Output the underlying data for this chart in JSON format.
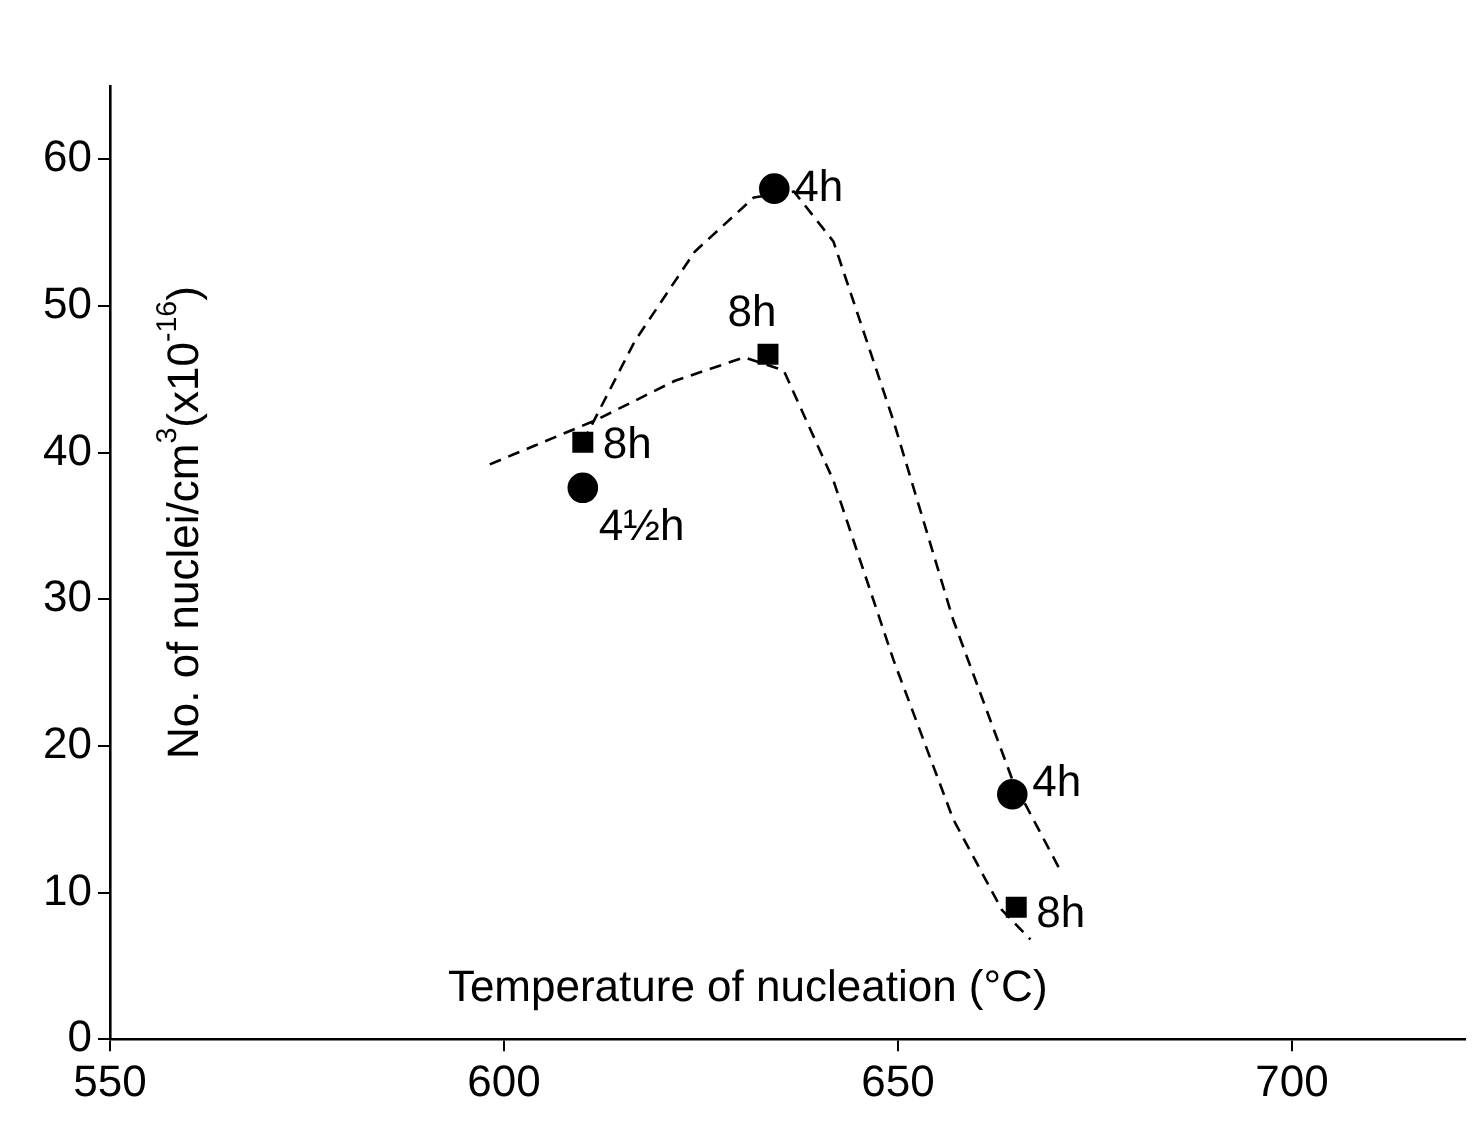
{
  "chart_data": {
    "type": "scatter",
    "xlabel": "Temperature of nucleation (°C)",
    "ylabel": "No. of nuclei/cm$^{3}$(x10$^{-16}$)",
    "xlim": [
      550,
      722
    ],
    "xticks": [
      550,
      600,
      650,
      700
    ],
    "ylim": [
      0,
      65
    ],
    "yticks": [
      0,
      10,
      20,
      30,
      40,
      50,
      60
    ],
    "grid": false,
    "legend": false,
    "series": [
      {
        "type": "scatter",
        "marker": "circle",
        "color": "#000000",
        "x": [
          610,
          634.3,
          664.5
        ],
        "values": [
          37.6,
          58,
          16.7
        ]
      },
      {
        "type": "scatter",
        "marker": "square",
        "color": "#000000",
        "x": [
          610,
          633.5,
          665
        ],
        "values": [
          40.7,
          46.7,
          9.0
        ]
      },
      {
        "type": "line",
        "marker": "none",
        "line_style": "dashed",
        "color": "#000000",
        "x": [
          610,
          616.6,
          624.2,
          631.7,
          636.8,
          641.8,
          649.4,
          657,
          664.5,
          670.8
        ],
        "values": [
          40.7,
          47.6,
          53.7,
          57.4,
          57.8,
          54.4,
          42.2,
          28.6,
          17.7,
          11.3
        ]
      },
      {
        "type": "line",
        "marker": "none",
        "line_style": "dashed",
        "color": "#000000",
        "x": [
          598.2,
          604,
          611.6,
          621.7,
          630.5,
          635.5,
          641.8,
          649.4,
          657,
          663.2,
          666.8
        ],
        "values": [
          39.2,
          40.5,
          42.2,
          44.9,
          46.5,
          45.6,
          38.1,
          25.9,
          15,
          8.8,
          6.8
        ]
      }
    ],
    "annotations": [
      {
        "text": "4h",
        "x": 634.3,
        "y": 58
      },
      {
        "text": "8h",
        "x": 633.5,
        "y": 46.7
      },
      {
        "text": "8h",
        "x": 610,
        "y": 40.7
      },
      {
        "text": "4½h",
        "x": 610,
        "y": 37.6
      },
      {
        "text": "4h",
        "x": 664.5,
        "y": 16.7
      },
      {
        "text": "8h",
        "x": 665,
        "y": 9.0
      }
    ]
  }
}
